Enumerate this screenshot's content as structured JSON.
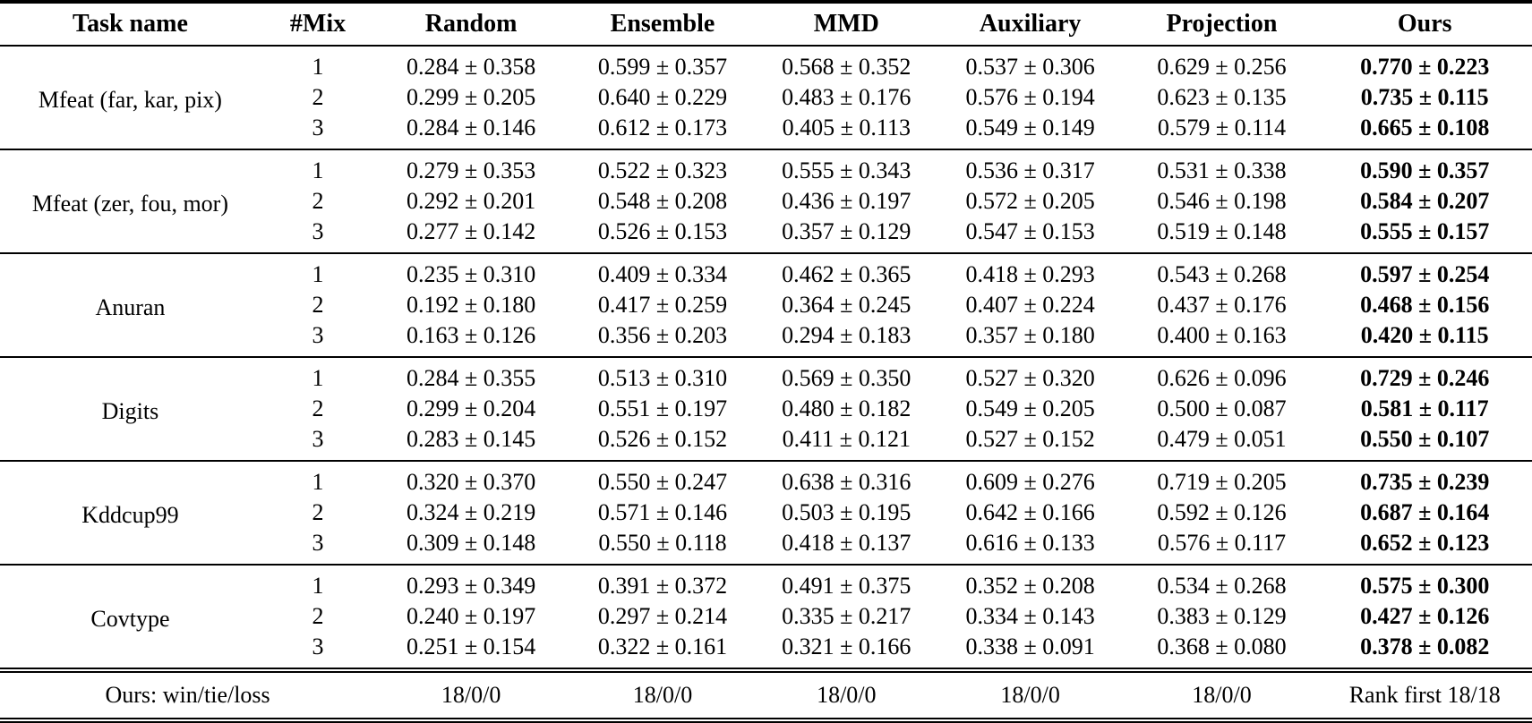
{
  "table": {
    "columns": [
      "Task name",
      "#Mix",
      "Random",
      "Ensemble",
      "MMD",
      "Auxiliary",
      "Projection",
      "Ours"
    ],
    "groups": [
      {
        "task": "Mfeat (far, kar, pix)",
        "rows": [
          {
            "mix": "1",
            "values": [
              "0.284 ± 0.358",
              "0.599 ± 0.357",
              "0.568 ± 0.352",
              "0.537 ± 0.306",
              "0.629 ± 0.256",
              "0.770 ± 0.223"
            ]
          },
          {
            "mix": "2",
            "values": [
              "0.299 ± 0.205",
              "0.640 ± 0.229",
              "0.483 ± 0.176",
              "0.576 ± 0.194",
              "0.623 ± 0.135",
              "0.735 ± 0.115"
            ]
          },
          {
            "mix": "3",
            "values": [
              "0.284 ± 0.146",
              "0.612 ± 0.173",
              "0.405 ± 0.113",
              "0.549 ± 0.149",
              "0.579 ± 0.114",
              "0.665 ± 0.108"
            ]
          }
        ]
      },
      {
        "task": "Mfeat (zer, fou, mor)",
        "rows": [
          {
            "mix": "1",
            "values": [
              "0.279 ± 0.353",
              "0.522 ± 0.323",
              "0.555 ± 0.343",
              "0.536 ± 0.317",
              "0.531 ± 0.338",
              "0.590 ± 0.357"
            ]
          },
          {
            "mix": "2",
            "values": [
              "0.292 ± 0.201",
              "0.548 ± 0.208",
              "0.436 ± 0.197",
              "0.572 ± 0.205",
              "0.546 ± 0.198",
              "0.584 ± 0.207"
            ]
          },
          {
            "mix": "3",
            "values": [
              "0.277 ± 0.142",
              "0.526 ± 0.153",
              "0.357 ± 0.129",
              "0.547 ± 0.153",
              "0.519 ± 0.148",
              "0.555 ± 0.157"
            ]
          }
        ]
      },
      {
        "task": "Anuran",
        "rows": [
          {
            "mix": "1",
            "values": [
              "0.235 ± 0.310",
              "0.409 ± 0.334",
              "0.462 ± 0.365",
              "0.418 ± 0.293",
              "0.543 ± 0.268",
              "0.597 ± 0.254"
            ]
          },
          {
            "mix": "2",
            "values": [
              "0.192 ± 0.180",
              "0.417 ± 0.259",
              "0.364 ± 0.245",
              "0.407 ± 0.224",
              "0.437 ± 0.176",
              "0.468 ± 0.156"
            ]
          },
          {
            "mix": "3",
            "values": [
              "0.163 ± 0.126",
              "0.356 ± 0.203",
              "0.294 ± 0.183",
              "0.357 ± 0.180",
              "0.400 ± 0.163",
              "0.420 ± 0.115"
            ]
          }
        ]
      },
      {
        "task": "Digits",
        "rows": [
          {
            "mix": "1",
            "values": [
              "0.284 ± 0.355",
              "0.513 ± 0.310",
              "0.569 ± 0.350",
              "0.527 ± 0.320",
              "0.626 ± 0.096",
              "0.729 ± 0.246"
            ]
          },
          {
            "mix": "2",
            "values": [
              "0.299 ± 0.204",
              "0.551 ± 0.197",
              "0.480 ± 0.182",
              "0.549 ± 0.205",
              "0.500 ± 0.087",
              "0.581 ± 0.117"
            ]
          },
          {
            "mix": "3",
            "values": [
              "0.283 ± 0.145",
              "0.526 ± 0.152",
              "0.411 ± 0.121",
              "0.527 ± 0.152",
              "0.479 ± 0.051",
              "0.550 ± 0.107"
            ]
          }
        ]
      },
      {
        "task": "Kddcup99",
        "rows": [
          {
            "mix": "1",
            "values": [
              "0.320 ± 0.370",
              "0.550 ± 0.247",
              "0.638 ± 0.316",
              "0.609 ± 0.276",
              "0.719 ± 0.205",
              "0.735 ± 0.239"
            ]
          },
          {
            "mix": "2",
            "values": [
              "0.324 ± 0.219",
              "0.571 ± 0.146",
              "0.503 ± 0.195",
              "0.642 ± 0.166",
              "0.592 ± 0.126",
              "0.687 ± 0.164"
            ]
          },
          {
            "mix": "3",
            "values": [
              "0.309 ± 0.148",
              "0.550 ± 0.118",
              "0.418 ± 0.137",
              "0.616 ± 0.133",
              "0.576 ± 0.117",
              "0.652 ± 0.123"
            ]
          }
        ]
      },
      {
        "task": "Covtype",
        "rows": [
          {
            "mix": "1",
            "values": [
              "0.293 ± 0.349",
              "0.391 ± 0.372",
              "0.491 ± 0.375",
              "0.352 ± 0.208",
              "0.534 ± 0.268",
              "0.575 ± 0.300"
            ]
          },
          {
            "mix": "2",
            "values": [
              "0.240 ± 0.197",
              "0.297 ± 0.214",
              "0.335 ± 0.217",
              "0.334 ± 0.143",
              "0.383 ± 0.129",
              "0.427 ± 0.126"
            ]
          },
          {
            "mix": "3",
            "values": [
              "0.251 ± 0.154",
              "0.322 ± 0.161",
              "0.321 ± 0.166",
              "0.338 ± 0.091",
              "0.368 ± 0.080",
              "0.378 ± 0.082"
            ]
          }
        ]
      }
    ],
    "footer": {
      "label": "Ours: win/tie/loss",
      "values": [
        "18/0/0",
        "18/0/0",
        "18/0/0",
        "18/0/0",
        "18/0/0"
      ],
      "ours": "Rank first 18/18"
    },
    "colors": {
      "text": "#000000",
      "background": "#ffffff",
      "rule": "#000000"
    }
  }
}
